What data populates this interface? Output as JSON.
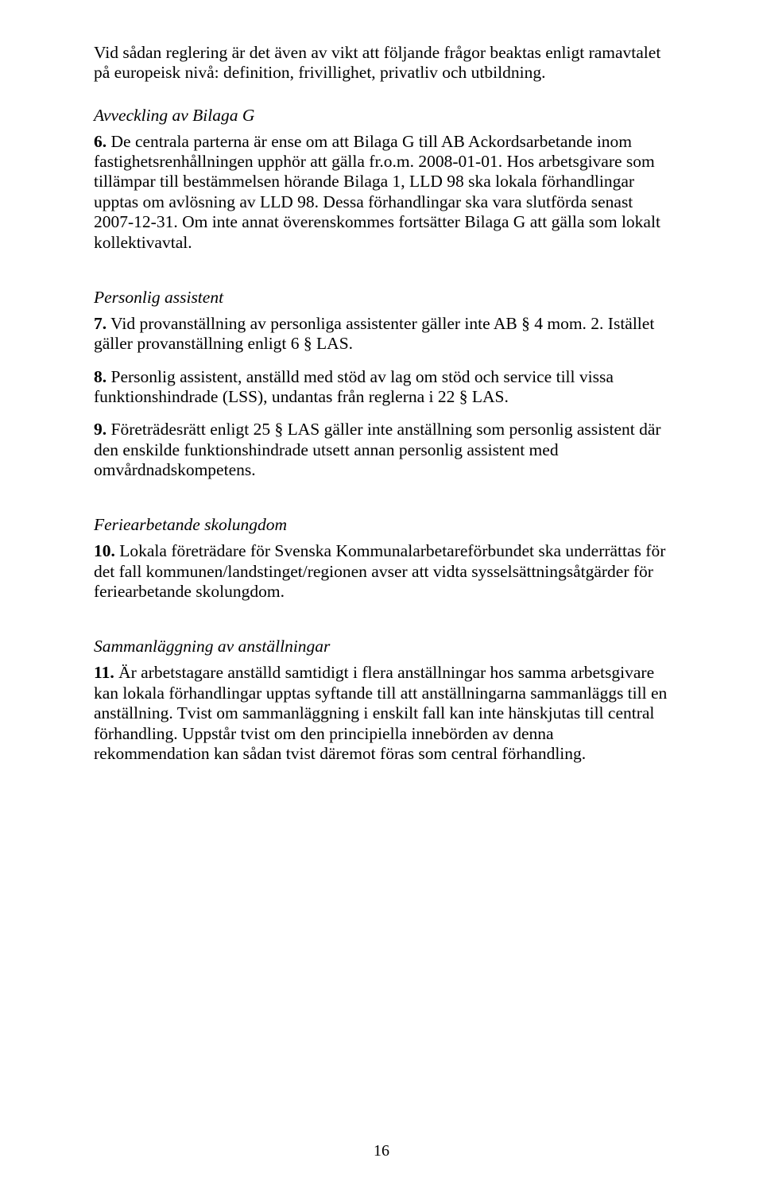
{
  "intro": {
    "para1": "Vid sådan reglering är det även av vikt att följande frågor beaktas enligt ramavtalet på europeisk nivå: definition, frivillighet, privatliv och utbildning."
  },
  "section_bilaga_g": {
    "heading": "Avveckling av Bilaga G",
    "item6_num": "6.",
    "item6_text": " De centrala parterna är ense om att Bilaga G till AB Ackordsarbetande inom fastighetsrenhållningen upphör att gälla fr.o.m. 2008-01-01. Hos arbetsgivare som tillämpar till bestämmelsen hörande Bilaga 1, LLD 98 ska lokala förhandlingar upptas om avlösning av LLD 98. Dessa förhandlingar ska vara slutförda senast 2007-12-31. Om inte annat överenskommes fortsätter Bilaga G att gälla som lokalt kollektivavtal."
  },
  "section_personlig": {
    "heading": "Personlig assistent",
    "item7_num": "7.",
    "item7_text": " Vid provanställning av personliga assistenter gäller inte AB § 4 mom. 2. Istället gäller provanställning enligt 6 § LAS.",
    "item8_num": "8.",
    "item8_text": " Personlig assistent, anställd med stöd av lag om stöd och service till vissa funktionshindrade (LSS), undantas från reglerna i 22 § LAS.",
    "item9_num": "9.",
    "item9_text": " Företrädesrätt enligt 25 § LAS gäller inte anställning som personlig assistent där den enskilde funktionshindrade utsett annan personlig assistent med omvårdnadskompetens."
  },
  "section_ferie": {
    "heading": "Feriearbetande skolungdom",
    "item10_num": "10.",
    "item10_text": " Lokala företrädare för Svenska Kommunalarbetareförbundet ska underrättas för det fall kommunen/landstinget/regionen avser att vidta sysselsättningsåtgärder för feriearbetande skolungdom."
  },
  "section_samman": {
    "heading": "Sammanläggning av anställningar",
    "item11_num": "11.",
    "item11_text": " Är arbetstagare anställd samtidigt i flera anställningar hos samma arbetsgivare kan lokala förhandlingar upptas syftande till att anställningarna sammanläggs till en anställning. Tvist om sammanläggning i enskilt fall kan inte hänskjutas till central förhandling. Uppstår tvist om den principiella innebörden av denna rekommendation kan sådan tvist däremot föras som central förhandling."
  },
  "page_number": "16"
}
